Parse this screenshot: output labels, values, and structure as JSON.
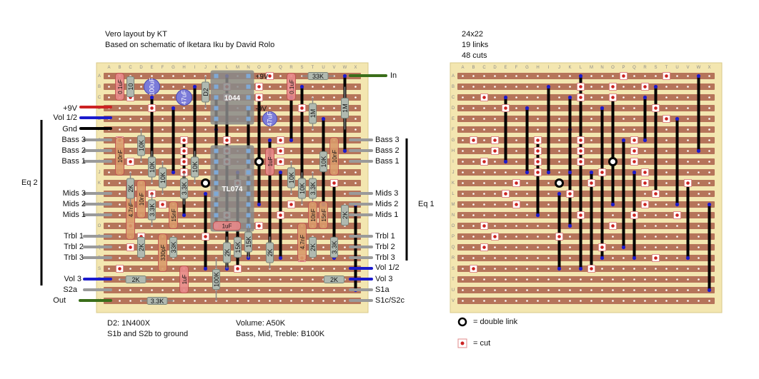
{
  "header": {
    "title": "Vero layout by KT",
    "subtitle": "Based on schematic of Iketara Iku by David Rolo"
  },
  "stats": {
    "grid": "24x22",
    "links": "19 links",
    "cuts": "48 cuts"
  },
  "columns": [
    "A",
    "B",
    "C",
    "D",
    "E",
    "F",
    "G",
    "H",
    "I",
    "J",
    "K",
    "L",
    "M",
    "N",
    "O",
    "P",
    "Q",
    "R",
    "S",
    "T",
    "U",
    "V",
    "W",
    "X"
  ],
  "rows": [
    "A",
    "B",
    "C",
    "D",
    "E",
    "F",
    "G",
    "H",
    "I",
    "J",
    "K",
    "L",
    "M",
    "N",
    "O",
    "P",
    "Q",
    "R",
    "S",
    "T",
    "U",
    "V"
  ],
  "left_labels": {
    "power": "+9V",
    "vol_half": "Vol 1/2",
    "gnd": "Gnd",
    "bass3": "Bass 3",
    "bass2": "Bass 2",
    "bass1": "Bass 1",
    "mids3": "Mids 3",
    "mids2": "Mids 2",
    "mids1": "Mids 1",
    "trbl1": "Trbl 1",
    "trbl2": "Trbl 2",
    "trbl3": "Trbl 3",
    "vol3": "Vol 3",
    "s2a": "S2a",
    "out": "Out"
  },
  "right_labels": {
    "in": "In",
    "bass3": "Bass 3",
    "bass2": "Bass 2",
    "bass1": "Bass 1",
    "mids3": "Mids 3",
    "mids2": "Mids 2",
    "mids1": "Mids 1",
    "trbl1": "Trbl 1",
    "trbl2": "Trbl 2",
    "trbl3": "Trbl 3",
    "vol_half": "Vol 1/2",
    "vol3": "Vol 3",
    "s1a": "S1a",
    "s1c": "S1c/S2c"
  },
  "eq_labels": {
    "left": "Eq 2",
    "right": "Eq 1"
  },
  "components": {
    "ic1": "1044",
    "ic2": "TL074",
    "diode": "D2",
    "r_33k_top": "33K",
    "r_1m_a": "1M",
    "r_1m_b": "1M",
    "c_100uf": "100uF",
    "c_47uf_a": "47uF",
    "c_47uf_b": "47uF",
    "c_01uf_a": "0.1uF",
    "c_01uf_b": "0.1uF",
    "r_10_a": "10",
    "v_pos": "+9V",
    "v_neg": "-9V",
    "c_10nf_a": "10nF",
    "c_10nf_b": "10nF",
    "c_10nf_c": "10nF",
    "c_10nf_d": "10nF",
    "c_10nf_e": "10nF",
    "r_10k_a": "10K",
    "r_10k_b": "10K",
    "r_10k_c": "10K",
    "r_10k_d": "10K",
    "r_10k_e": "10K",
    "r_10k_f": "10K",
    "r_2k_a": "2K",
    "r_2k_b": "2K",
    "r_2k_c": "2K",
    "r_2k_d": "2K",
    "r_2k_e": "2K",
    "r_2k_f": "2K",
    "r_2k_g": "2K",
    "r_2k_h": "2K",
    "r_33k_a": "3.3K",
    "r_33k_b": "3.3K",
    "r_33k_c": "3.3K",
    "r_33k_d": "3.3K",
    "r_33k_e": "3.3K",
    "c_15nf_a": "15nF",
    "c_15nf_b": "15nF",
    "c_1uf_a": "1uF",
    "c_1uf_b": "1uF",
    "c_1uf_c": "1uF",
    "c_47nf_a": "4.7nF",
    "c_47nf_b": "4.7nF",
    "c_330pf": "330pF",
    "r_33k_v": "33K",
    "r_15k_a": "15K",
    "r_15k_b": "15K",
    "r_100k": "100K"
  },
  "notes": {
    "diode": "D2: 1N400X",
    "switch": "S1b and S2b to ground",
    "volume": "Volume: A50K",
    "tone": "Bass, Mid, Treble: B100K"
  },
  "legend": {
    "double_link": "= double link",
    "cut": "= cut"
  },
  "colors": {
    "board_bg": "#f3e6b0",
    "strip": "#b5745a",
    "strip_light": "#d9a488",
    "hole": "#ffffff",
    "link": "#000000",
    "link_end": "#1a1acc",
    "cut": "#cc2222",
    "wire_red": "#cc2222",
    "wire_blue": "#1a1acc",
    "wire_black": "#000000",
    "wire_green": "#3a6e1a",
    "wire_grey": "#9a9a9a",
    "ic_fill": "#8a8a8a",
    "cap_blue": "#7b7bd9",
    "cap_red": "#e88a8a",
    "resistor": "#b0b9b0"
  }
}
